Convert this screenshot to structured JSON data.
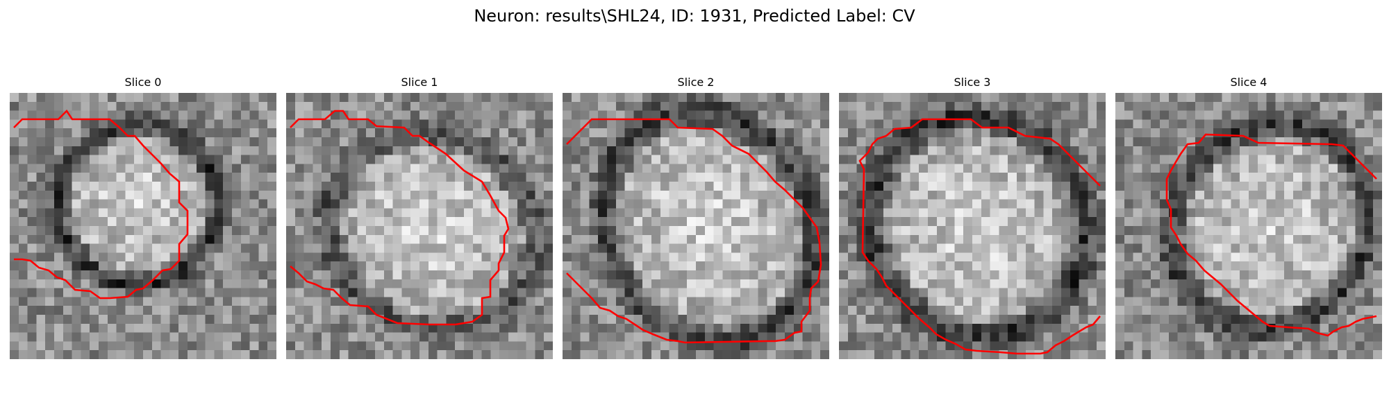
{
  "figure": {
    "title": "Neuron: results\\SHL24, ID: 1931, Predicted Label: CV"
  },
  "colors": {
    "contour": "#ff0000",
    "background": "#ffffff"
  },
  "slices": [
    {
      "title": "Slice 0"
    },
    {
      "title": "Slice 1"
    },
    {
      "title": "Slice 2"
    },
    {
      "title": "Slice 3"
    },
    {
      "title": "Slice 4"
    }
  ]
}
